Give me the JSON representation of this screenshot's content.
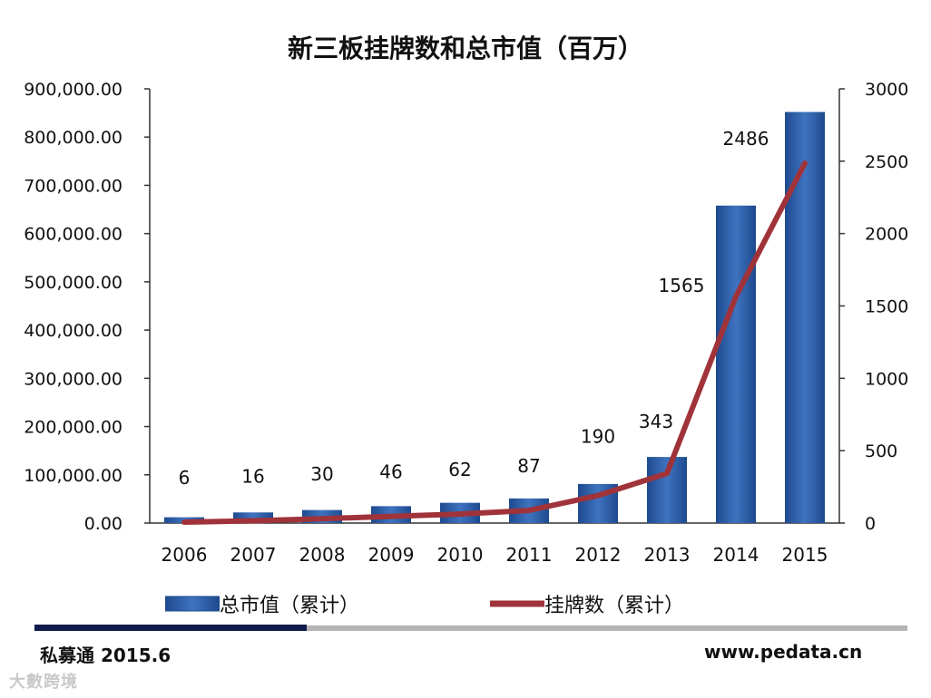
{
  "chart_data": {
    "type": "bar",
    "title": "新三板挂牌数和总市值（百万）",
    "categories": [
      "2006",
      "2007",
      "2008",
      "2009",
      "2010",
      "2011",
      "2012",
      "2013",
      "2014",
      "2015"
    ],
    "series": [
      {
        "name": "总市值（累计）",
        "kind": "bar",
        "axis": "left",
        "values": [
          12000,
          22000,
          27000,
          35000,
          42000,
          51000,
          81000,
          137000,
          658000,
          852000
        ]
      },
      {
        "name": "挂牌数（累计）",
        "kind": "line",
        "axis": "right",
        "values": [
          6,
          16,
          30,
          46,
          62,
          87,
          190,
          343,
          1565,
          2486
        ],
        "labels": [
          "6",
          "16",
          "30",
          "46",
          "62",
          "87",
          "190",
          "343",
          "1565",
          "2486"
        ]
      }
    ],
    "y_left": {
      "min": 0,
      "max": 900000,
      "ticks": [
        "0.00",
        "100,000.00",
        "200,000.00",
        "300,000.00",
        "400,000.00",
        "500,000.00",
        "600,000.00",
        "700,000.00",
        "800,000.00",
        "900,000.00"
      ]
    },
    "y_right": {
      "min": 0,
      "max": 3000,
      "ticks": [
        "0",
        "500",
        "1000",
        "1500",
        "2000",
        "2500",
        "3000"
      ]
    },
    "grid": false,
    "legend_position": "bottom",
    "colors": {
      "bar": "#2f5ea8",
      "line": "#a0333a"
    }
  },
  "footer": {
    "source": "私募通 2015.6",
    "website": "www.pedata.cn"
  },
  "watermark": "大數跨境"
}
